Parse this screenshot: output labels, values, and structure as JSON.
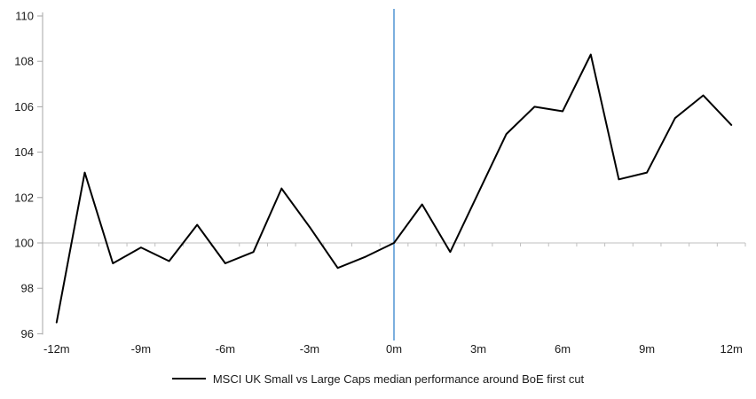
{
  "legend": {
    "label": "MSCI UK Small vs Large Caps median performance around BoE first cut"
  },
  "colors": {
    "series": "#000000",
    "event_line": "#5B9BD5",
    "gridline_100": "#BFBFBF",
    "axis": "#A6A6A6",
    "text": "#1A1A1A"
  },
  "chart_data": {
    "type": "line",
    "title": "",
    "xlabel": "",
    "ylabel": "",
    "x_unit": "months relative to BoE first rate cut",
    "x": [
      -12,
      -11,
      -10,
      -9,
      -8,
      -7,
      -6,
      -5,
      -4,
      -3,
      -2,
      -1,
      0,
      1,
      2,
      3,
      4,
      5,
      6,
      7,
      8,
      9,
      10,
      11,
      12
    ],
    "x_tick_labels": [
      {
        "x": -12,
        "label": "-12m"
      },
      {
        "x": -9,
        "label": "-9m"
      },
      {
        "x": -6,
        "label": "-6m"
      },
      {
        "x": -3,
        "label": "-3m"
      },
      {
        "x": 0,
        "label": "0m"
      },
      {
        "x": 3,
        "label": "3m"
      },
      {
        "x": 6,
        "label": "6m"
      },
      {
        "x": 9,
        "label": "9m"
      },
      {
        "x": 12,
        "label": "12m"
      }
    ],
    "y_ticks": [
      {
        "value": 96,
        "label": "96"
      },
      {
        "value": 98,
        "label": "98"
      },
      {
        "value": 100,
        "label": "100"
      },
      {
        "value": 102,
        "label": "102"
      },
      {
        "value": 104,
        "label": "104"
      },
      {
        "value": 106,
        "label": "106"
      },
      {
        "value": 108,
        "label": "108"
      },
      {
        "value": 110,
        "label": "110"
      }
    ],
    "ylim": [
      96,
      110
    ],
    "series": [
      {
        "name": "MSCI UK Small vs Large Caps median performance around BoE first cut",
        "color": "#000000",
        "values": [
          96.5,
          103.1,
          99.1,
          99.8,
          99.2,
          100.8,
          99.1,
          99.6,
          102.4,
          100.7,
          98.9,
          99.4,
          100.0,
          101.7,
          99.6,
          102.2,
          104.8,
          106.0,
          105.8,
          108.3,
          102.8,
          103.1,
          105.5,
          106.5,
          105.2
        ]
      }
    ],
    "reference_lines": {
      "horizontal_at_y": 100,
      "vertical_at_x": 0
    },
    "grid": "single horizontal line at y=100 with category tick marks",
    "legend_position": "bottom"
  }
}
